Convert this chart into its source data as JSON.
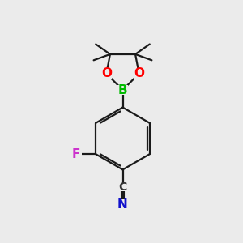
{
  "bg_color": "#ebebeb",
  "bond_color": "#1a1a1a",
  "bond_width": 1.6,
  "atom_colors": {
    "B": "#00bb00",
    "O": "#ff0000",
    "F": "#cc33cc",
    "N": "#1111cc",
    "C_label": "#333333"
  },
  "font_size_atom": 11,
  "xlim": [
    0,
    10
  ],
  "ylim": [
    0,
    10
  ]
}
